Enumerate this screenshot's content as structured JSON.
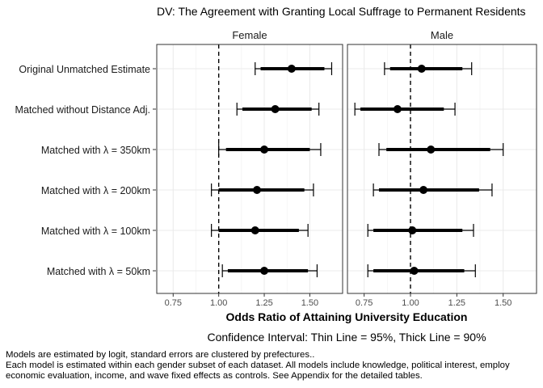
{
  "chart_data": {
    "type": "forest",
    "title": "DV: The Agreement with Granting Local Suffrage to Permanent Residents",
    "xlabel": "Odds Ratio of Attaining University Education",
    "subtitle": "Confidence Interval: Thin Line = 95%, Thick Line = 90%",
    "xlim": [
      0.66,
      1.68
    ],
    "xticks": [
      0.75,
      1.0,
      1.25,
      1.5
    ],
    "xtick_labels": [
      "0.75",
      "1.00",
      "1.25",
      "1.50"
    ],
    "reference_line": 1.0,
    "grid": true,
    "categories": [
      "Original Unmatched Estimate",
      "Matched without Distance Adj.",
      "Matched with  λ  = 350km",
      "Matched with  λ  = 200km",
      "Matched with  λ  = 100km",
      "Matched with  λ  = 50km"
    ],
    "panels": [
      {
        "name": "Female",
        "estimates": [
          1.4,
          1.31,
          1.25,
          1.21,
          1.2,
          1.25
        ],
        "ci95": [
          [
            1.2,
            1.62
          ],
          [
            1.1,
            1.55
          ],
          [
            1.0,
            1.56
          ],
          [
            0.96,
            1.52
          ],
          [
            0.96,
            1.49
          ],
          [
            1.02,
            1.54
          ]
        ],
        "ci90": [
          [
            1.23,
            1.58
          ],
          [
            1.13,
            1.51
          ],
          [
            1.04,
            1.5
          ],
          [
            1.0,
            1.47
          ],
          [
            1.0,
            1.44
          ],
          [
            1.05,
            1.49
          ]
        ]
      },
      {
        "name": "Male",
        "estimates": [
          1.06,
          0.93,
          1.11,
          1.07,
          1.01,
          1.02
        ],
        "ci95": [
          [
            0.86,
            1.33
          ],
          [
            0.7,
            1.24
          ],
          [
            0.83,
            1.5
          ],
          [
            0.8,
            1.44
          ],
          [
            0.77,
            1.34
          ],
          [
            0.77,
            1.35
          ]
        ],
        "ci90": [
          [
            0.89,
            1.28
          ],
          [
            0.73,
            1.18
          ],
          [
            0.87,
            1.43
          ],
          [
            0.83,
            1.37
          ],
          [
            0.8,
            1.28
          ],
          [
            0.8,
            1.29
          ]
        ]
      }
    ]
  },
  "caption": {
    "line1": "Models are estimated by logit, standard errors are clustered by prefectures..",
    "line2": "Each model is estimated within each gender subset of each dataset. All models include knowledge, political interest, employ",
    "line3": "economic evaluation, income, and wave fixed effects as controls. See Appendix for the detailed tables."
  }
}
